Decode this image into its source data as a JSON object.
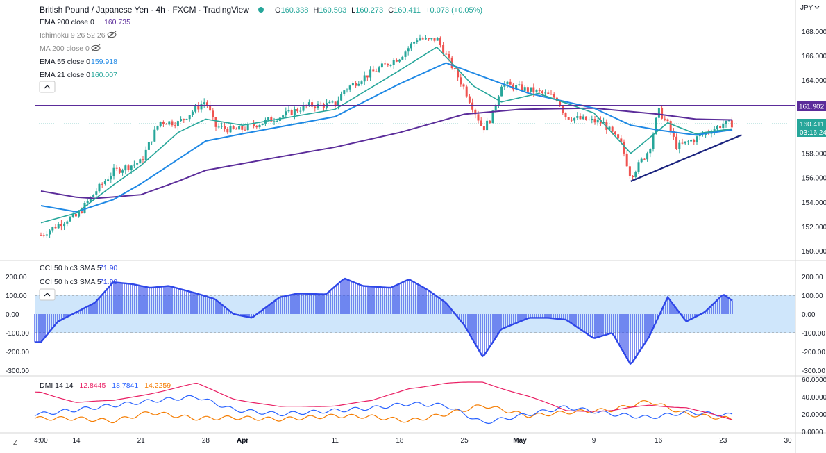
{
  "header": {
    "symbol_line": "British Pound / Japanese Yen · 4h · FXCM · TradingView",
    "ohlc": {
      "open_label": "O",
      "open": "160.338",
      "high_label": "H",
      "high": "160.503",
      "low_label": "L",
      "low": "160.273",
      "close_label": "C",
      "close": "160.411",
      "change": "+0.073 (+0.05%)"
    },
    "currency": "JPY"
  },
  "indicators": [
    {
      "label": "EMA 200 close 0",
      "value": "160.735",
      "color": "#5b2c9a"
    },
    {
      "label": "Ichimoku 9 26 52 26",
      "value": "",
      "color": "#888888",
      "hidden": true
    },
    {
      "label": "MA 200 close 0",
      "value": "",
      "color": "#888888",
      "hidden": true
    },
    {
      "label": "EMA 55 close 0",
      "value": "159.918",
      "color": "#1e88e5"
    },
    {
      "label": "EMA 21 close 0",
      "value": "160.007",
      "color": "#26a69a"
    }
  ],
  "cci_legend": [
    {
      "label": "CCI 50 hlc3 SMA 5",
      "value": "71.90"
    },
    {
      "label": "CCI 50 hlc3 SMA 5",
      "value": "71.90"
    }
  ],
  "dmi_legend": {
    "label": "DMI 14 14",
    "values": [
      {
        "value": "12.8445",
        "color": "#e91e63"
      },
      {
        "value": "18.7841",
        "color": "#2962ff"
      },
      {
        "value": "14.2259",
        "color": "#f57c00"
      }
    ]
  },
  "price_badges": {
    "resistance": "161.902",
    "last_price": "160.411",
    "countdown": "03:16:24"
  },
  "x_axis_labels": [
    "4:00",
    "14",
    "21",
    "28",
    "Apr",
    "11",
    "18",
    "25",
    "May",
    "9",
    "16",
    "23",
    "30"
  ],
  "timezone_button": "Z",
  "colors": {
    "up": "#26a69a",
    "down": "#ef5350",
    "ema200": "#5b2c9a",
    "ema55": "#1e88e5",
    "ema21": "#26a69a",
    "resistance": "#5b2c9a",
    "trendline": "#1a237e",
    "cci": "#2f47e8",
    "cci_band": "#cfe6fb",
    "dmi_plus": "#2962ff",
    "dmi_minus": "#f57c00",
    "adx": "#e91e63"
  },
  "chart_data": [
    {
      "type": "candlestick",
      "title": "British Pound / Japanese Yen · 4h · FXCM · TradingView",
      "ylabel": "JPY",
      "y_ticks": [
        150,
        152,
        154,
        156,
        158,
        160,
        162,
        164,
        166,
        168
      ],
      "ylim": [
        149.2,
        169.4
      ],
      "x_ticks": [
        "4:00",
        "14",
        "21",
        "28",
        "Apr",
        "11",
        "18",
        "25",
        "May",
        "9",
        "16",
        "23",
        "30"
      ],
      "grid": false,
      "close_path": [
        {
          "x": "Mar 10 04:00",
          "y": 151.3
        },
        {
          "x": "Mar 13",
          "y": 152.6
        },
        {
          "x": "Mar 14",
          "y": 152.8
        },
        {
          "x": "Mar 16",
          "y": 154.8
        },
        {
          "x": "Mar 18",
          "y": 156.5
        },
        {
          "x": "Mar 21",
          "y": 157.3
        },
        {
          "x": "Mar 23",
          "y": 160.6
        },
        {
          "x": "Mar 25",
          "y": 160.5
        },
        {
          "x": "Mar 28",
          "y": 162.3
        },
        {
          "x": "Mar 29",
          "y": 160.2
        },
        {
          "x": "Mar 31",
          "y": 159.9
        },
        {
          "x": "Apr 1",
          "y": 160.0
        },
        {
          "x": "Apr 5",
          "y": 161.0
        },
        {
          "x": "Apr 8",
          "y": 161.9
        },
        {
          "x": "Apr 11",
          "y": 162.0
        },
        {
          "x": "Apr 12",
          "y": 163.2
        },
        {
          "x": "Apr 14",
          "y": 164.2
        },
        {
          "x": "Apr 18",
          "y": 165.9
        },
        {
          "x": "Apr 20",
          "y": 167.5
        },
        {
          "x": "Apr 21",
          "y": 167.2
        },
        {
          "x": "Apr 22",
          "y": 167.4
        },
        {
          "x": "Apr 25",
          "y": 163.3
        },
        {
          "x": "Apr 27",
          "y": 160.0
        },
        {
          "x": "Apr 28",
          "y": 161.0
        },
        {
          "x": "Apr 29",
          "y": 163.7
        },
        {
          "x": "May 3",
          "y": 163.0
        },
        {
          "x": "May 5",
          "y": 162.5
        },
        {
          "x": "May 6",
          "y": 161.0
        },
        {
          "x": "May 10",
          "y": 160.5
        },
        {
          "x": "May 12",
          "y": 158.7
        },
        {
          "x": "May 13",
          "y": 156.1
        },
        {
          "x": "May 15",
          "y": 158.3
        },
        {
          "x": "May 16",
          "y": 161.5
        },
        {
          "x": "May 17",
          "y": 160.4
        },
        {
          "x": "May 18",
          "y": 158.5
        },
        {
          "x": "May 20",
          "y": 159.2
        },
        {
          "x": "May 23",
          "y": 160.4
        },
        {
          "x": "May 24",
          "y": 160.41
        }
      ],
      "series": [
        {
          "name": "EMA 200 close 0",
          "points": [
            {
              "x": "Mar 10 04:00",
              "y": 154.9
            },
            {
              "x": "Mar 14",
              "y": 154.4
            },
            {
              "x": "Mar 16",
              "y": 154.3
            },
            {
              "x": "Mar 21",
              "y": 154.6
            },
            {
              "x": "Mar 25",
              "y": 155.7
            },
            {
              "x": "Mar 28",
              "y": 156.6
            },
            {
              "x": "Apr 5",
              "y": 157.7
            },
            {
              "x": "Apr 11",
              "y": 158.5
            },
            {
              "x": "Apr 18",
              "y": 159.7
            },
            {
              "x": "Apr 25",
              "y": 161.2
            },
            {
              "x": "May 1",
              "y": 161.6
            },
            {
              "x": "May 9",
              "y": 161.7
            },
            {
              "x": "May 16",
              "y": 161.2
            },
            {
              "x": "May 20",
              "y": 160.8
            },
            {
              "x": "May 24",
              "y": 160.735
            }
          ]
        },
        {
          "name": "EMA 55 close 0",
          "points": [
            {
              "x": "Mar 10 04:00",
              "y": 153.7
            },
            {
              "x": "Mar 14",
              "y": 153.2
            },
            {
              "x": "Mar 18",
              "y": 154.2
            },
            {
              "x": "Mar 21",
              "y": 155.5
            },
            {
              "x": "Mar 25",
              "y": 157.5
            },
            {
              "x": "Mar 28",
              "y": 159.0
            },
            {
              "x": "Apr 1",
              "y": 159.6
            },
            {
              "x": "Apr 11",
              "y": 161.0
            },
            {
              "x": "Apr 18",
              "y": 163.7
            },
            {
              "x": "Apr 23",
              "y": 165.4
            },
            {
              "x": "Apr 28",
              "y": 164.0
            },
            {
              "x": "May 2",
              "y": 162.9
            },
            {
              "x": "May 9",
              "y": 161.7
            },
            {
              "x": "May 13",
              "y": 160.3
            },
            {
              "x": "May 16",
              "y": 159.9
            },
            {
              "x": "May 20",
              "y": 159.5
            },
            {
              "x": "May 24",
              "y": 159.918
            }
          ]
        },
        {
          "name": "EMA 21 close 0",
          "points": [
            {
              "x": "Mar 10 04:00",
              "y": 152.3
            },
            {
              "x": "Mar 14",
              "y": 153.1
            },
            {
              "x": "Mar 18",
              "y": 155.4
            },
            {
              "x": "Mar 21",
              "y": 157.0
            },
            {
              "x": "Mar 25",
              "y": 159.7
            },
            {
              "x": "Mar 28",
              "y": 160.8
            },
            {
              "x": "Apr 1",
              "y": 160.3
            },
            {
              "x": "Apr 11",
              "y": 161.6
            },
            {
              "x": "Apr 18",
              "y": 164.8
            },
            {
              "x": "Apr 22",
              "y": 166.7
            },
            {
              "x": "Apr 26",
              "y": 163.5
            },
            {
              "x": "Apr 29",
              "y": 162.2
            },
            {
              "x": "May 3",
              "y": 162.9
            },
            {
              "x": "May 9",
              "y": 161.3
            },
            {
              "x": "May 13",
              "y": 158.0
            },
            {
              "x": "May 17",
              "y": 160.5
            },
            {
              "x": "May 20",
              "y": 159.6
            },
            {
              "x": "May 24",
              "y": 160.007
            }
          ]
        }
      ],
      "annotations": [
        {
          "type": "horizontal_line",
          "value": 161.902,
          "label": "161.902"
        },
        {
          "type": "trendline",
          "from": {
            "x": "May 13",
            "y": 155.7
          },
          "to": {
            "x": "May 25",
            "y": 159.5
          }
        }
      ]
    },
    {
      "type": "bar",
      "title": "CCI 50 hlc3 SMA 5",
      "y_ticks": [
        -300,
        -200,
        -100,
        0,
        100,
        200
      ],
      "ylim": [
        -330,
        230
      ],
      "band": [
        -100,
        100
      ],
      "x": [
        "Mar 10 04:00",
        "Mar 12",
        "Mar 14",
        "Mar 16",
        "Mar 18",
        "Mar 20",
        "Mar 22",
        "Mar 24",
        "Mar 27",
        "Mar 29",
        "Mar 31",
        "Apr 2",
        "Apr 5",
        "Apr 7",
        "Apr 10",
        "Apr 12",
        "Apr 14",
        "Apr 17",
        "Apr 19",
        "Apr 21",
        "Apr 23",
        "Apr 25",
        "Apr 27",
        "Apr 29",
        "May 2",
        "May 4",
        "May 6",
        "May 9",
        "May 11",
        "May 13",
        "May 15",
        "May 17",
        "May 19",
        "May 21",
        "May 23",
        "May 24"
      ],
      "values": [
        -150,
        -40,
        10,
        60,
        170,
        160,
        140,
        150,
        110,
        80,
        0,
        -20,
        90,
        110,
        105,
        190,
        150,
        140,
        185,
        130,
        60,
        -60,
        -230,
        -80,
        -20,
        -20,
        -30,
        -130,
        -100,
        -270,
        -120,
        90,
        -40,
        10,
        105,
        72
      ]
    },
    {
      "type": "line",
      "title": "DMI 14 14",
      "y_ticks": [
        0,
        20,
        40,
        60
      ],
      "ylim": [
        0,
        62
      ],
      "x": [
        "Mar 10 04:00",
        "Mar 14",
        "Mar 18",
        "Mar 22",
        "Mar 27",
        "Mar 31",
        "Apr 5",
        "Apr 11",
        "Apr 15",
        "Apr 19",
        "Apr 23",
        "Apr 27",
        "May 2",
        "May 6",
        "May 11",
        "May 15",
        "May 19",
        "May 24"
      ],
      "series": [
        {
          "name": "DMI 14 14",
          "values": [
            45,
            34,
            35,
            44,
            55,
            38,
            28,
            30,
            35,
            50,
            55,
            57,
            40,
            24,
            24,
            30,
            28,
            12.8445
          ]
        },
        {
          "name": "DMI 14 14",
          "values": [
            20,
            25,
            30,
            35,
            40,
            25,
            20,
            24,
            27,
            32,
            30,
            10,
            20,
            28,
            20,
            16,
            22,
            18.7841
          ]
        },
        {
          "name": "DMI 14 14",
          "values": [
            15,
            15,
            12,
            22,
            15,
            16,
            14,
            18,
            17,
            12,
            20,
            30,
            18,
            22,
            25,
            35,
            20,
            14.2259
          ]
        }
      ]
    }
  ]
}
